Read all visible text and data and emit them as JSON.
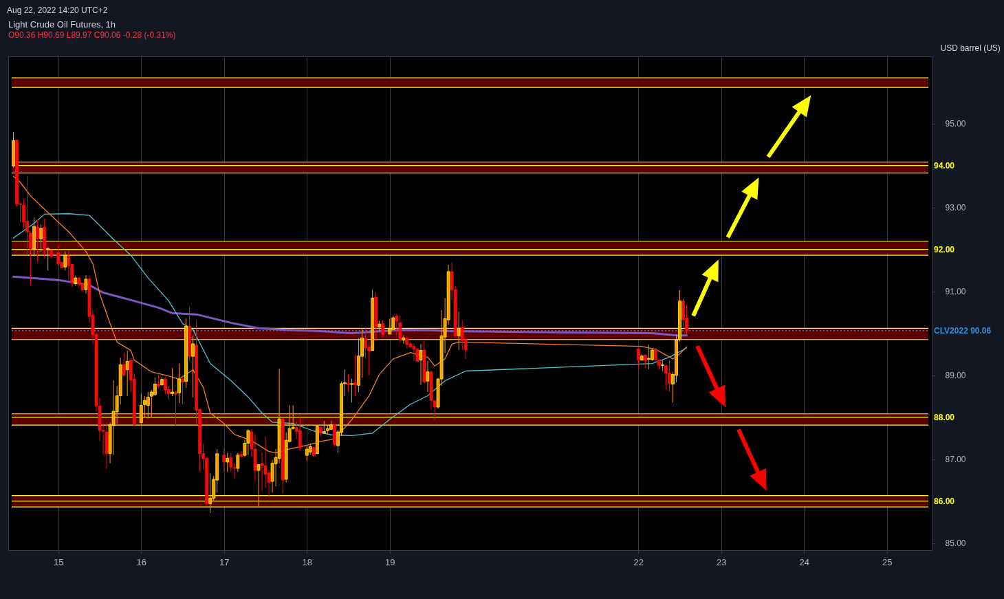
{
  "chart_data": {
    "type": "candlestick",
    "title": "Light Crude Oil Futures, 1h",
    "subtitle": "O90.36 H90.69 L89.97 C90.06 -0.28 (-0.31%)",
    "ylabel": "USD barrel (US)",
    "annotations": [
      "Aug 22, 2022 14:20 UTC+2"
    ],
    "x": [
      "2022-08-14T11:00",
      "2022-08-14T12:00",
      "2022-08-14T13:00",
      "2022-08-14T14:00",
      "2022-08-14T15:00",
      "2022-08-14T16:00",
      "2022-08-14T17:00",
      "2022-08-14T18:00",
      "2022-08-14T19:00",
      "2022-08-14T20:00",
      "2022-08-14T21:00",
      "2022-08-14T22:00",
      "2022-08-15T00:00",
      "2022-08-15T01:00",
      "2022-08-15T02:00",
      "2022-08-15T03:00",
      "2022-08-15T04:00",
      "2022-08-15T05:00",
      "2022-08-15T06:00",
      "2022-08-15T07:00",
      "2022-08-15T08:00",
      "2022-08-15T09:00",
      "2022-08-15T10:00",
      "2022-08-15T11:00",
      "2022-08-15T12:00",
      "2022-08-15T13:00",
      "2022-08-15T14:00",
      "2022-08-15T15:00",
      "2022-08-15T16:00",
      "2022-08-15T17:00",
      "2022-08-15T18:00",
      "2022-08-15T19:00",
      "2022-08-15T20:00",
      "2022-08-15T21:00",
      "2022-08-15T22:00",
      "2022-08-16T00:00",
      "2022-08-16T01:00",
      "2022-08-16T02:00",
      "2022-08-16T03:00",
      "2022-08-16T04:00",
      "2022-08-16T05:00",
      "2022-08-16T06:00",
      "2022-08-16T07:00",
      "2022-08-16T08:00",
      "2022-08-16T09:00",
      "2022-08-16T10:00",
      "2022-08-16T11:00",
      "2022-08-16T12:00",
      "2022-08-16T13:00",
      "2022-08-16T14:00",
      "2022-08-16T15:00",
      "2022-08-16T16:00",
      "2022-08-16T17:00",
      "2022-08-16T18:00",
      "2022-08-16T19:00",
      "2022-08-16T20:00",
      "2022-08-16T21:00",
      "2022-08-16T22:00",
      "2022-08-17T00:00",
      "2022-08-17T01:00",
      "2022-08-17T02:00",
      "2022-08-17T03:00",
      "2022-08-17T04:00",
      "2022-08-17T05:00",
      "2022-08-17T06:00",
      "2022-08-17T07:00",
      "2022-08-17T08:00",
      "2022-08-17T09:00",
      "2022-08-17T10:00",
      "2022-08-17T11:00",
      "2022-08-17T12:00",
      "2022-08-17T13:00",
      "2022-08-17T14:00",
      "2022-08-17T15:00",
      "2022-08-17T16:00",
      "2022-08-17T17:00",
      "2022-08-17T18:00",
      "2022-08-17T19:00",
      "2022-08-17T20:00",
      "2022-08-17T21:00",
      "2022-08-17T22:00",
      "2022-08-18T00:00",
      "2022-08-18T01:00",
      "2022-08-18T02:00",
      "2022-08-18T03:00",
      "2022-08-18T04:00",
      "2022-08-18T05:00",
      "2022-08-18T06:00",
      "2022-08-18T07:00",
      "2022-08-18T08:00",
      "2022-08-18T09:00",
      "2022-08-18T10:00",
      "2022-08-18T11:00",
      "2022-08-18T12:00",
      "2022-08-18T13:00",
      "2022-08-18T14:00",
      "2022-08-18T15:00",
      "2022-08-18T16:00",
      "2022-08-18T17:00",
      "2022-08-18T18:00",
      "2022-08-18T19:00",
      "2022-08-18T20:00",
      "2022-08-18T21:00",
      "2022-08-18T22:00",
      "2022-08-19T00:00",
      "2022-08-19T01:00",
      "2022-08-19T02:00",
      "2022-08-19T03:00",
      "2022-08-19T04:00",
      "2022-08-19T05:00",
      "2022-08-19T06:00",
      "2022-08-19T07:00",
      "2022-08-19T08:00",
      "2022-08-19T09:00",
      "2022-08-19T10:00",
      "2022-08-19T11:00",
      "2022-08-19T12:00",
      "2022-08-19T13:00",
      "2022-08-19T14:00",
      "2022-08-19T15:00",
      "2022-08-19T16:00",
      "2022-08-19T17:00",
      "2022-08-19T18:00",
      "2022-08-19T19:00",
      "2022-08-19T20:00",
      "2022-08-19T21:00",
      "2022-08-19T22:00",
      "2022-08-22T00:00",
      "2022-08-22T01:00",
      "2022-08-22T02:00",
      "2022-08-22T03:00",
      "2022-08-22T04:00",
      "2022-08-22T05:00",
      "2022-08-22T06:00",
      "2022-08-22T07:00",
      "2022-08-22T08:00",
      "2022-08-22T09:00",
      "2022-08-22T10:00",
      "2022-08-22T11:00",
      "2022-08-22T12:00",
      "2022-08-22T13:00",
      "2022-08-22T14:00"
    ],
    "ohlc": [
      [
        93.99,
        94.8,
        93.95,
        94.59
      ],
      [
        94.6,
        94.62,
        93.02,
        93.08
      ],
      [
        93.09,
        93.1,
        92.65,
        93.07
      ],
      [
        93.05,
        93.2,
        92.5,
        92.65
      ],
      [
        92.67,
        93.75,
        91.87,
        92.41
      ],
      [
        92.39,
        92.4,
        91.15,
        92.01
      ],
      [
        92.01,
        92.76,
        91.83,
        92.55
      ],
      [
        92.53,
        92.7,
        91.7,
        92.25
      ],
      [
        92.25,
        92.6,
        91.95,
        92.5
      ],
      [
        92.53,
        92.73,
        91.79,
        91.98
      ],
      [
        91.99,
        92.05,
        91.5,
        92.02
      ],
      [
        91.98,
        92.0,
        91.8,
        91.83
      ],
      [
        91.92,
        92.09,
        91.62,
        91.66
      ],
      [
        91.69,
        91.7,
        91.55,
        91.56
      ],
      [
        91.58,
        91.96,
        91.5,
        91.86
      ],
      [
        91.84,
        91.97,
        91.27,
        91.61
      ],
      [
        91.64,
        91.65,
        91.1,
        91.2
      ],
      [
        91.18,
        91.38,
        91.13,
        91.32
      ],
      [
        91.32,
        91.35,
        91.1,
        91.17
      ],
      [
        91.18,
        91.2,
        91.0,
        91.03
      ],
      [
        91.04,
        91.38,
        90.95,
        91.29
      ],
      [
        91.3,
        91.38,
        90.25,
        90.4
      ],
      [
        90.43,
        90.55,
        89.75,
        89.97
      ],
      [
        89.97,
        89.99,
        88.13,
        88.27
      ],
      [
        88.27,
        88.45,
        87.44,
        87.68
      ],
      [
        87.69,
        87.85,
        87.09,
        87.66
      ],
      [
        87.65,
        87.87,
        86.78,
        87.13
      ],
      [
        87.13,
        87.87,
        86.9,
        87.82
      ],
      [
        87.81,
        88.88,
        87.1,
        88.14
      ],
      [
        88.13,
        88.75,
        87.85,
        88.51
      ],
      [
        88.51,
        89.42,
        88.3,
        89.25
      ],
      [
        89.26,
        89.54,
        89.0,
        89.0
      ],
      [
        89.13,
        89.58,
        88.5,
        89.33
      ],
      [
        89.36,
        89.4,
        88.6,
        88.88
      ],
      [
        88.91,
        89.05,
        87.8,
        87.82
      ],
      [
        87.87,
        88.56,
        87.8,
        88.28
      ],
      [
        88.3,
        88.5,
        88.0,
        88.4
      ],
      [
        88.28,
        88.6,
        87.97,
        88.48
      ],
      [
        88.5,
        88.65,
        88.0,
        88.6
      ],
      [
        88.54,
        88.95,
        88.5,
        88.79
      ],
      [
        88.79,
        89.0,
        88.7,
        88.74
      ],
      [
        88.77,
        88.95,
        88.75,
        88.9
      ],
      [
        88.91,
        88.95,
        88.55,
        88.65
      ],
      [
        88.66,
        88.75,
        88.42,
        88.56
      ],
      [
        88.56,
        89.17,
        88.5,
        88.6
      ],
      [
        88.6,
        88.62,
        87.79,
        88.55
      ],
      [
        88.58,
        89.28,
        88.34,
        88.91
      ],
      [
        88.91,
        89.0,
        88.3,
        88.83
      ],
      [
        88.85,
        90.35,
        88.7,
        90.17
      ],
      [
        90.17,
        90.64,
        89.33,
        89.45
      ],
      [
        89.45,
        89.94,
        88.47,
        89.75
      ],
      [
        89.72,
        90.31,
        87.85,
        88.16
      ],
      [
        88.19,
        88.2,
        86.7,
        87.13
      ],
      [
        87.13,
        87.37,
        86.75,
        87.01
      ],
      [
        87.02,
        87.07,
        85.91,
        85.94
      ],
      [
        85.94,
        86.66,
        85.72,
        86.07
      ],
      [
        86.07,
        86.6,
        86.0,
        86.52
      ],
      [
        86.5,
        87.24,
        86.2,
        87.13
      ],
      [
        87.1,
        87.26,
        86.7,
        86.93
      ],
      [
        86.93,
        87.15,
        86.7,
        87.02
      ],
      [
        87.04,
        87.15,
        86.69,
        86.81
      ],
      [
        86.8,
        86.9,
        86.53,
        86.78
      ],
      [
        86.78,
        87.15,
        86.7,
        87.1
      ],
      [
        87.12,
        87.2,
        87.05,
        87.06
      ],
      [
        87.09,
        87.46,
        87.05,
        87.38
      ],
      [
        87.38,
        87.72,
        87.1,
        87.68
      ],
      [
        87.65,
        87.72,
        87.05,
        87.24
      ],
      [
        87.24,
        87.6,
        86.47,
        86.73
      ],
      [
        86.73,
        86.88,
        85.87,
        86.87
      ],
      [
        86.9,
        87.17,
        86.23,
        86.84
      ],
      [
        86.84,
        87.53,
        86.3,
        86.64
      ],
      [
        86.67,
        86.74,
        86.09,
        86.44
      ],
      [
        86.47,
        86.98,
        86.2,
        86.9
      ],
      [
        86.89,
        87.24,
        86.35,
        87.04
      ],
      [
        87.02,
        89.16,
        86.9,
        87.96
      ],
      [
        87.96,
        87.97,
        86.18,
        86.5
      ],
      [
        86.52,
        87.64,
        86.44,
        87.45
      ],
      [
        87.42,
        88.28,
        87.4,
        87.73
      ],
      [
        87.73,
        88.28,
        87.7,
        87.76
      ],
      [
        87.76,
        87.9,
        87.48,
        87.66
      ],
      [
        87.68,
        88.03,
        87.2,
        87.27
      ],
      [
        87.09,
        87.3,
        86.96,
        87.24
      ],
      [
        87.17,
        87.36,
        87.1,
        87.3
      ],
      [
        87.28,
        87.3,
        87.06,
        87.08
      ],
      [
        87.13,
        87.81,
        87.13,
        87.78
      ],
      [
        87.76,
        87.78,
        87.55,
        87.62
      ],
      [
        87.62,
        87.91,
        87.6,
        87.66
      ],
      [
        87.68,
        87.8,
        87.6,
        87.73
      ],
      [
        87.71,
        87.92,
        87.7,
        87.82
      ],
      [
        87.82,
        87.83,
        87.3,
        87.35
      ],
      [
        87.32,
        87.7,
        87.15,
        87.65
      ],
      [
        87.64,
        88.85,
        87.55,
        88.8
      ],
      [
        88.8,
        89.14,
        88.5,
        88.82
      ],
      [
        88.81,
        89.03,
        88.6,
        88.77
      ],
      [
        88.78,
        88.92,
        88.35,
        88.8
      ],
      [
        88.82,
        89.49,
        88.5,
        88.77
      ],
      [
        88.76,
        89.88,
        88.6,
        89.46
      ],
      [
        89.45,
        90.1,
        88.94,
        89.89
      ],
      [
        89.88,
        90.13,
        89.4,
        89.65
      ],
      [
        89.66,
        89.8,
        89.0,
        89.58
      ],
      [
        89.59,
        91.03,
        89.58,
        90.84
      ],
      [
        90.86,
        90.98,
        89.82,
        90.15
      ],
      [
        90.15,
        90.3,
        90.05,
        90.22
      ],
      [
        90.23,
        90.32,
        89.9,
        89.97
      ],
      [
        89.98,
        90.35,
        89.98,
        90.11
      ],
      [
        90.09,
        90.42,
        90.08,
        90.37
      ],
      [
        90.41,
        90.47,
        89.95,
        90.29
      ],
      [
        90.25,
        90.42,
        89.78,
        89.85
      ],
      [
        89.84,
        89.95,
        89.75,
        89.89
      ],
      [
        89.89,
        89.9,
        89.64,
        89.73
      ],
      [
        89.75,
        89.8,
        89.64,
        89.68
      ],
      [
        89.69,
        89.76,
        89.34,
        89.62
      ],
      [
        89.63,
        89.65,
        89.32,
        89.33
      ],
      [
        89.36,
        89.74,
        88.77,
        89.59
      ],
      [
        89.6,
        89.82,
        88.8,
        88.84
      ],
      [
        88.86,
        89.34,
        88.6,
        89.08
      ],
      [
        89.08,
        89.11,
        88.18,
        88.4
      ],
      [
        88.39,
        88.4,
        87.94,
        88.24
      ],
      [
        88.24,
        88.94,
        88.2,
        88.91
      ],
      [
        88.91,
        90.55,
        88.75,
        89.94
      ],
      [
        89.91,
        90.84,
        89.53,
        90.35
      ],
      [
        90.32,
        91.63,
        90.2,
        91.47
      ],
      [
        91.47,
        91.69,
        90.8,
        91.03
      ],
      [
        91.04,
        91.13,
        89.9,
        89.94
      ],
      [
        89.94,
        90.52,
        89.6,
        90.12
      ],
      [
        90.14,
        90.3,
        89.6,
        89.82
      ],
      [
        89.85,
        89.87,
        89.39,
        89.6
      ],
      [
        89.63,
        89.65,
        89.14,
        89.36
      ],
      [
        89.36,
        89.5,
        89.35,
        89.46
      ],
      [
        89.48,
        89.5,
        89.17,
        89.34
      ],
      [
        89.38,
        89.73,
        89.14,
        89.4
      ],
      [
        89.37,
        89.64,
        89.35,
        89.6
      ],
      [
        89.62,
        89.65,
        89.33,
        89.36
      ],
      [
        89.36,
        89.38,
        89.14,
        89.23
      ],
      [
        89.23,
        89.37,
        89.1,
        89.25
      ],
      [
        89.23,
        89.25,
        88.65,
        89.05
      ],
      [
        89.05,
        89.36,
        88.6,
        88.8
      ],
      [
        88.79,
        89.08,
        88.35,
        89.02
      ],
      [
        89.0,
        89.97,
        88.83,
        89.85
      ],
      [
        89.85,
        91.03,
        89.8,
        90.77
      ],
      [
        90.77,
        90.83,
        90.16,
        90.32
      ],
      [
        90.36,
        90.69,
        89.97,
        90.06
      ]
    ],
    "series": [
      {
        "type": "line",
        "color": "#7e57c2",
        "x": [
          "2022-08-14T11:00",
          "2022-08-15T00:00",
          "2022-08-15T09:00",
          "2022-08-15T13:00",
          "2022-08-15T22:00",
          "2022-08-16T05:00",
          "2022-08-16T09:00",
          "2022-08-16T13:00",
          "2022-08-16T16:00",
          "2022-08-17T02:00",
          "2022-08-17T10:00",
          "2022-08-17T18:00",
          "2022-08-18T04:00",
          "2022-08-18T13:00",
          "2022-08-19T03:00",
          "2022-08-19T12:00",
          "2022-08-19T18:00",
          "2022-08-22T04:00",
          "2022-08-22T11:00",
          "2022-08-22T14:00"
        ],
        "values": [
          91.35,
          91.27,
          91.15,
          90.97,
          90.77,
          90.61,
          90.48,
          90.46,
          90.45,
          90.25,
          90.12,
          90.08,
          90.05,
          90.0,
          90.08,
          90.07,
          90.05,
          90.0,
          89.95,
          89.95
        ]
      },
      {
        "type": "line",
        "color": "#4dc3cf",
        "x": [
          "2022-08-14T11:00",
          "2022-08-14T17:00",
          "2022-08-14T20:00",
          "2022-08-15T03:00",
          "2022-08-15T09:00",
          "2022-08-15T11:00",
          "2022-08-15T16:00",
          "2022-08-15T21:00",
          "2022-08-16T02:00",
          "2022-08-16T08:00",
          "2022-08-16T12:00",
          "2022-08-16T15:00",
          "2022-08-16T20:00",
          "2022-08-17T02:00",
          "2022-08-17T07:00",
          "2022-08-17T11:00",
          "2022-08-17T14:00",
          "2022-08-17T20:00",
          "2022-08-18T02:00",
          "2022-08-18T07:00",
          "2022-08-18T13:00",
          "2022-08-18T19:00",
          "2022-08-19T01:00",
          "2022-08-19T06:00",
          "2022-08-19T11:00",
          "2022-08-19T16:00",
          "2022-08-19T22:00",
          "2022-08-22T04:00",
          "2022-08-22T09:00",
          "2022-08-22T14:00"
        ],
        "values": [
          92.27,
          92.62,
          92.84,
          92.85,
          92.81,
          92.65,
          92.24,
          91.86,
          91.32,
          90.77,
          90.23,
          90.09,
          89.28,
          88.87,
          88.48,
          88.1,
          87.88,
          87.85,
          87.67,
          87.58,
          87.56,
          87.62,
          88.01,
          88.31,
          88.51,
          88.87,
          89.1,
          89.28,
          89.43,
          89.65
        ]
      },
      {
        "type": "line",
        "color": "#f57c1f",
        "x": [
          "2022-08-14T11:00",
          "2022-08-14T13:00",
          "2022-08-14T16:00",
          "2022-08-14T21:00",
          "2022-08-15T03:00",
          "2022-08-15T08:00",
          "2022-08-15T10:00",
          "2022-08-15T12:00",
          "2022-08-15T15:00",
          "2022-08-15T17:00",
          "2022-08-15T21:00",
          "2022-08-15T22:00",
          "2022-08-16T03:00",
          "2022-08-16T07:00",
          "2022-08-16T11:00",
          "2022-08-16T13:00",
          "2022-08-16T15:00",
          "2022-08-16T18:00",
          "2022-08-16T20:00",
          "2022-08-17T00:00",
          "2022-08-17T03:00",
          "2022-08-17T06:00",
          "2022-08-17T09:00",
          "2022-08-17T13:00",
          "2022-08-17T15:00",
          "2022-08-17T19:00",
          "2022-08-18T00:00",
          "2022-08-18T05:00",
          "2022-08-18T08:00",
          "2022-08-18T13:00",
          "2022-08-18T14:00",
          "2022-08-18T18:00",
          "2022-08-18T21:00",
          "2022-08-19T01:00",
          "2022-08-19T06:00",
          "2022-08-19T11:00",
          "2022-08-19T13:00",
          "2022-08-19T16:00",
          "2022-08-19T18:00",
          "2022-08-19T20:00",
          "2022-08-22T01:00",
          "2022-08-22T05:00",
          "2022-08-22T08:00",
          "2022-08-22T10:00",
          "2022-08-22T12:00",
          "2022-08-22T14:00"
        ],
        "values": [
          93.74,
          93.6,
          93.27,
          92.88,
          92.42,
          91.95,
          91.66,
          90.94,
          90.23,
          89.79,
          89.59,
          89.36,
          89.08,
          89.0,
          88.91,
          89.02,
          89.13,
          88.71,
          88.1,
          87.85,
          87.59,
          87.5,
          87.39,
          87.18,
          87.15,
          87.24,
          87.33,
          87.44,
          87.48,
          87.94,
          88.05,
          88.51,
          89.02,
          89.39,
          89.54,
          89.43,
          89.22,
          89.39,
          89.74,
          89.79,
          89.69,
          89.62,
          89.48,
          89.39,
          89.51,
          89.68
        ]
      }
    ],
    "xlim": [
      "2022-08-14T10:30",
      "2022-08-25T12:00"
    ],
    "xticks": [
      {
        "value": "2022-08-15",
        "label": "15"
      },
      {
        "value": "2022-08-16",
        "label": "16"
      },
      {
        "value": "2022-08-17",
        "label": "17"
      },
      {
        "value": "2022-08-18",
        "label": "18"
      },
      {
        "value": "2022-08-19",
        "label": "19"
      },
      {
        "value": "2022-08-22",
        "label": "22"
      },
      {
        "value": "2022-08-23",
        "label": "23"
      },
      {
        "value": "2022-08-24",
        "label": "24"
      },
      {
        "value": "2022-08-25",
        "label": "25"
      }
    ],
    "ylim": [
      84.83,
      96.6
    ],
    "yticks": [
      {
        "value": 85,
        "label": "85.00"
      },
      {
        "value": 87,
        "label": "87.00"
      },
      {
        "value": 89,
        "label": "89.00"
      },
      {
        "value": 91,
        "label": "91.00"
      },
      {
        "value": 93,
        "label": "93.00"
      },
      {
        "value": 95,
        "label": "95.00"
      }
    ],
    "bands": [
      {
        "axis": "y",
        "from": 95.86,
        "to": 96.09,
        "color": "#5a0000"
      },
      {
        "axis": "y",
        "from": 93.82,
        "to": 94.08,
        "color": "#5a0000"
      },
      {
        "axis": "y",
        "from": 91.86,
        "to": 92.19,
        "color": "#5a0000"
      },
      {
        "axis": "y",
        "from": 89.85,
        "to": 90.12,
        "color": "#5a0000"
      },
      {
        "axis": "y",
        "from": 87.81,
        "to": 88.08,
        "color": "#5a0000"
      },
      {
        "axis": "y",
        "from": 85.86,
        "to": 86.13,
        "color": "#5a0000"
      }
    ],
    "ref_lines": [
      {
        "axis": "y",
        "value": 95.86,
        "color": "#ffff00"
      },
      {
        "axis": "y",
        "value": 96.09,
        "color": "#ffff00"
      },
      {
        "axis": "y",
        "value": 93.82,
        "color": "#ffff00"
      },
      {
        "axis": "y",
        "value": 94.08,
        "color": "#ffff00"
      },
      {
        "axis": "y",
        "value": 91.86,
        "color": "#ffff00"
      },
      {
        "axis": "y",
        "value": 92.19,
        "color": "#ffff00"
      },
      {
        "axis": "y",
        "value": 89.85,
        "color": "#ffff00"
      },
      {
        "axis": "y",
        "value": 90.12,
        "color": "#ffff00"
      },
      {
        "axis": "y",
        "value": 87.81,
        "color": "#ffff00"
      },
      {
        "axis": "y",
        "value": 88.08,
        "color": "#ffff00"
      },
      {
        "axis": "y",
        "value": 85.86,
        "color": "#ffff00"
      },
      {
        "axis": "y",
        "value": 86.13,
        "color": "#ffff00"
      },
      {
        "axis": "y",
        "value": 94,
        "label": "94.00",
        "color": "#ffff00"
      },
      {
        "axis": "y",
        "value": 92,
        "label": "92.00",
        "color": "#ffff00"
      },
      {
        "axis": "y",
        "value": 88,
        "label": "88.00",
        "color": "#ffff00"
      },
      {
        "axis": "y",
        "value": 86,
        "label": "86.00",
        "color": "#ffff00"
      },
      {
        "axis": "y",
        "value": 90.06,
        "label": "CLV2022 90.06",
        "color": "#2f8fdc",
        "line_style": "dotted"
      }
    ],
    "grid": "x"
  }
}
